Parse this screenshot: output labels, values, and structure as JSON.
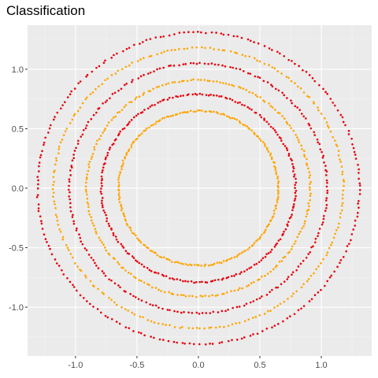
{
  "chart_data": {
    "type": "scatter",
    "title": "Classification",
    "xlabel": "",
    "ylabel": "",
    "xlim": [
      -1.39,
      1.41
    ],
    "ylim": [
      -1.41,
      1.37
    ],
    "x_ticks": [
      -1.0,
      -0.5,
      0.0,
      0.5,
      1.0
    ],
    "x_tick_labels": [
      "-1.0",
      "-0.5",
      "0.0",
      "0.5",
      "1.0"
    ],
    "y_ticks": [
      1.0,
      0.5,
      0.0,
      -0.5,
      -1.0
    ],
    "y_tick_labels": [
      "1.0",
      "0.5",
      "0.0",
      "-0.5",
      "-1.0"
    ],
    "grid": true,
    "legend": "none",
    "series": [
      {
        "color": "#FFA500",
        "ring_radii": [
          0.65,
          0.91,
          1.18
        ]
      },
      {
        "color": "#E8000B",
        "ring_radii": [
          0.79,
          1.05,
          1.31
        ]
      }
    ],
    "points_per_ring": 220
  }
}
